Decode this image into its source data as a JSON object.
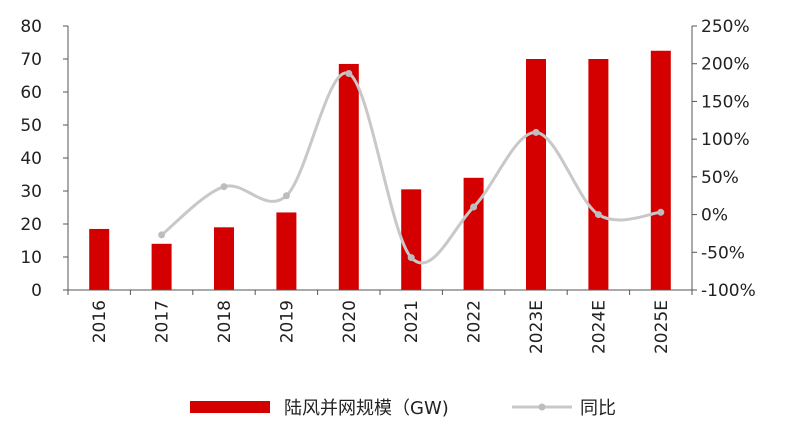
{
  "chart_data": {
    "type": "bar",
    "categories": [
      "2016",
      "2017",
      "2018",
      "2019",
      "2020",
      "2021",
      "2022",
      "2023E",
      "2024E",
      "2025E"
    ],
    "series": [
      {
        "name": "陆风并网规模（GW)",
        "type": "bar",
        "axis": "left",
        "color": "#d40000",
        "values": [
          18.5,
          14,
          19,
          23.5,
          68.5,
          30.5,
          34,
          70,
          70,
          72.5
        ]
      },
      {
        "name": "同比",
        "type": "line",
        "axis": "right",
        "smooth": true,
        "color": "#c8c8c8",
        "values": [
          null,
          -27,
          37,
          25,
          187,
          -57,
          10,
          109,
          0,
          3
        ]
      }
    ],
    "left_axis": {
      "ylim": [
        0,
        80
      ],
      "ticks": [
        "0",
        "10",
        "20",
        "30",
        "40",
        "50",
        "60",
        "70",
        "80"
      ]
    },
    "right_axis": {
      "ylim": [
        -100,
        250
      ],
      "ticks": [
        "-100%",
        "-50%",
        "0%",
        "50%",
        "100%",
        "150%",
        "200%",
        "250%"
      ]
    },
    "xlabel": "",
    "ylabel": "",
    "title": "",
    "grid": false,
    "legend": "bottom"
  }
}
